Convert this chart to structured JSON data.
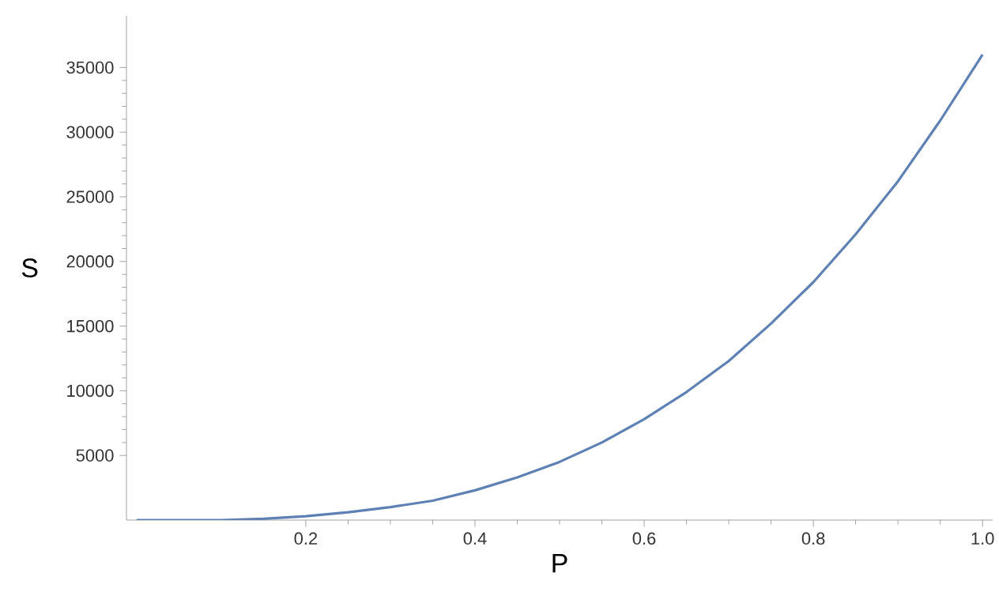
{
  "chart_data": {
    "type": "line",
    "xlabel": "P",
    "ylabel": "S",
    "x": [
      0,
      0.05,
      0.1,
      0.15,
      0.2,
      0.25,
      0.3,
      0.35,
      0.4,
      0.45,
      0.5,
      0.55,
      0.6,
      0.65,
      0.7,
      0.75,
      0.8,
      0.85,
      0.9,
      0.95,
      1.0
    ],
    "series": [
      {
        "color": "#5e81b5",
        "values": [
          0,
          0,
          0,
          100,
          300,
          600,
          1000,
          1500,
          2300,
          3300,
          4500,
          6000,
          7800,
          9900,
          12300,
          15200,
          18400,
          22100,
          26200,
          30900,
          36000
        ]
      }
    ],
    "xlim": [
      -0.012,
      1.012
    ],
    "ylim": [
      0,
      39000
    ],
    "xticks": [
      0.2,
      0.4,
      0.6,
      0.8,
      {
        "value": 1,
        "label": "1.0"
      }
    ],
    "yticks": [
      5000,
      10000,
      15000,
      20000,
      25000,
      30000,
      35000
    ],
    "grid": false,
    "marker": "none",
    "line_style": "solid"
  }
}
